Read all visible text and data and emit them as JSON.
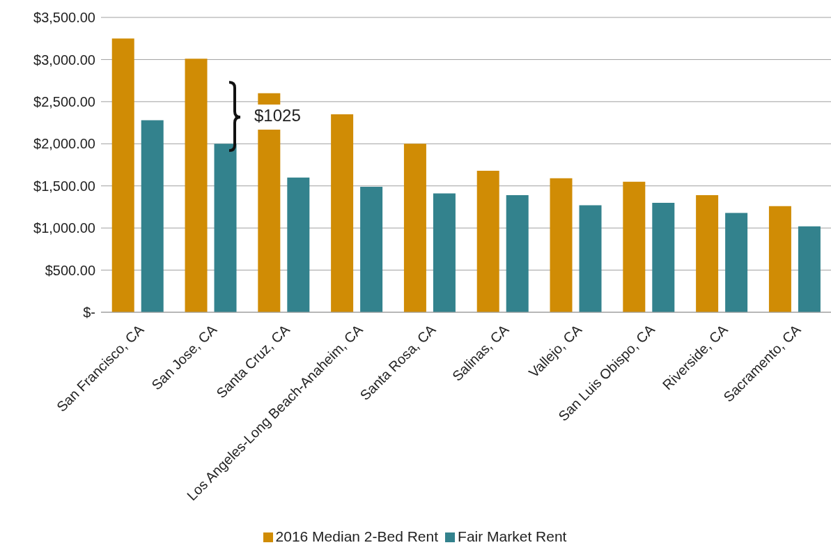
{
  "chart_data": {
    "type": "bar",
    "categories": [
      "San Francisco, CA",
      "San Jose, CA",
      "Santa Cruz, CA",
      "Los Angeles-Long Beach-Anaheim, CA",
      "Santa Rosa, CA",
      "Salinas, CA",
      "Vallejo, CA",
      "San Luis Obispo, CA",
      "Riverside, CA",
      "Sacramento, CA"
    ],
    "series": [
      {
        "name": "2016 Median 2-Bed Rent",
        "color": "#d08c05",
        "values": [
          3250,
          3010,
          2600,
          2350,
          2000,
          1680,
          1590,
          1550,
          1390,
          1260
        ]
      },
      {
        "name": "Fair Market Rent",
        "color": "#33828d",
        "values": [
          2280,
          2000,
          1600,
          1490,
          1410,
          1390,
          1270,
          1300,
          1180,
          1020
        ]
      }
    ],
    "ylim": [
      0,
      3500
    ],
    "yticks": [
      {
        "value": 0,
        "label": "$-"
      },
      {
        "value": 500,
        "label": "$500.00"
      },
      {
        "value": 1000,
        "label": "$1,000.00"
      },
      {
        "value": 1500,
        "label": "$1,500.00"
      },
      {
        "value": 2000,
        "label": "$2,000.00"
      },
      {
        "value": 2500,
        "label": "$2,500.00"
      },
      {
        "value": 3000,
        "label": "$3,000.00"
      },
      {
        "value": 3500,
        "label": "$3,500.00"
      }
    ],
    "grid": "y",
    "legend": "bottom",
    "annotations": [
      "$1025"
    ]
  }
}
